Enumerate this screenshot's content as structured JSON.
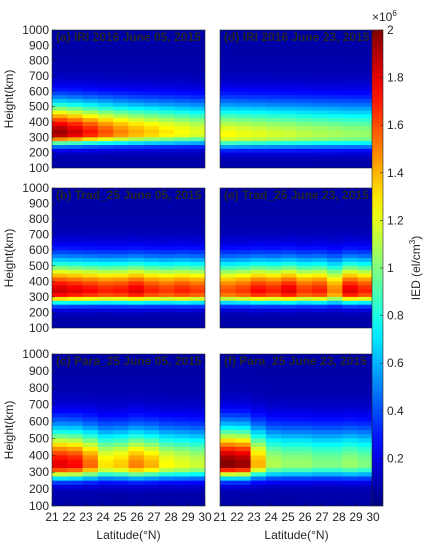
{
  "chart_data": {
    "type": "heatmap",
    "colormap": "jet",
    "xlabel": "Latitude(°N)",
    "ylabel": "Height(km)",
    "xlim": [
      21,
      30
    ],
    "ylim": [
      100,
      1000
    ],
    "x_ticks": [
      "21",
      "22",
      "23",
      "24",
      "25",
      "26",
      "27",
      "28",
      "29",
      "30"
    ],
    "y_ticks": [
      "1000",
      "900",
      "800",
      "700",
      "600",
      "500",
      "400",
      "300",
      "200",
      "100"
    ],
    "colorbar": {
      "label": "IED (el/cm³)",
      "label_main": "IED (el/cm",
      "label_sup": "3",
      "label_end": ")",
      "multiplier": "×10",
      "multiplier_exp": "6",
      "ticks": [
        "2",
        "1.8",
        "1.6",
        "1.4",
        "1.2",
        "1",
        "0.8",
        "0.6",
        "0.4",
        "0.2"
      ],
      "range": [
        0,
        2
      ]
    },
    "panels": [
      {
        "id": "a",
        "title": "(a) IRI 2016  June 05, 2015",
        "peak_height_km": 325,
        "peak_value": [
          1.95,
          1.85,
          1.72,
          1.6,
          1.5,
          1.42,
          1.36,
          1.3,
          1.25,
          1.2
        ],
        "thickness_km": 110
      },
      {
        "id": "d",
        "title": "(d) IRI 2016  June 23, 2015",
        "peak_height_km": 310,
        "peak_value": [
          1.25,
          1.22,
          1.2,
          1.17,
          1.15,
          1.12,
          1.1,
          1.08,
          1.06,
          1.05
        ],
        "thickness_km": 120
      },
      {
        "id": "b",
        "title": "(b) Trad_25  June 05, 2015",
        "peak_height_km": 330,
        "peak_value": [
          1.85,
          1.8,
          1.75,
          1.7,
          1.72,
          1.8,
          1.7,
          1.65,
          1.7,
          1.65
        ],
        "thickness_km": 110
      },
      {
        "id": "e",
        "title": "(e) Trad_25  June 23, 2015",
        "peak_height_km": 330,
        "peak_value": [
          1.6,
          1.65,
          1.75,
          1.7,
          1.8,
          1.65,
          1.7,
          1.5,
          1.8,
          1.7
        ],
        "thickness_km": 110
      },
      {
        "id": "c",
        "title": "(c) Para_25  June 05, 2015",
        "peak_height_km": 340,
        "peak_value": [
          1.8,
          1.75,
          1.55,
          1.3,
          1.35,
          1.5,
          1.4,
          1.25,
          1.2,
          1.15
        ],
        "thickness_km": 120
      },
      {
        "id": "f",
        "title": "(f) Para_25  June 23, 2015",
        "peak_height_km": 345,
        "peak_value": [
          2.0,
          1.95,
          1.4,
          1.1,
          1.05,
          1.05,
          1.0,
          1.0,
          1.05,
          1.0
        ],
        "thickness_km": 120
      }
    ]
  }
}
